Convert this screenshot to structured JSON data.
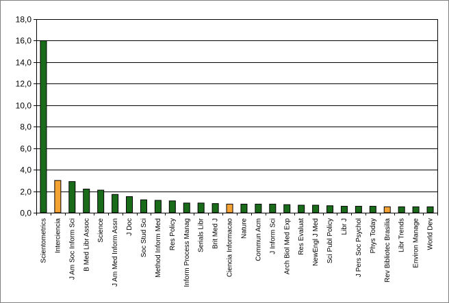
{
  "chart_data": {
    "type": "bar",
    "title": "",
    "xlabel": "",
    "ylabel": "",
    "ylim": [
      0,
      18
    ],
    "ytick_step": 2,
    "y_ticks": [
      "0,0",
      "2,0",
      "4,0",
      "6,0",
      "8,0",
      "10,0",
      "12,0",
      "14,0",
      "16,0",
      "18,0"
    ],
    "grid": "horizontal",
    "legend": "none",
    "colors": {
      "default": "#1a6b1a",
      "highlight": "#f4a233",
      "edge": "#000000"
    },
    "categories": [
      "Scientometrics",
      "Interciencia",
      "J Am Soc Inform Sci",
      "B Med Libr Assoc",
      "Science",
      "J Am Med Inform Assn",
      "J Doc",
      "Soc Stud Sci",
      "Method Inform Med",
      "Res Policy",
      "Inform Process Manag",
      "Serials Libr",
      "Brit Med J",
      "Ciencia Informacao",
      "Nature",
      "Commun Acm",
      "J Inform Sci",
      "Arch Biol Med Exp",
      "Res Evaluat",
      "NewEngl J Med",
      "Sci Publ Policy",
      "Libr J",
      "J Pers Soc Psychol",
      "Phys Today",
      "Rev Bibliotec Brasilia",
      "Libr Trends",
      "Environ Manage",
      "World Dev"
    ],
    "values": [
      16.0,
      3.0,
      2.9,
      2.2,
      2.1,
      1.7,
      1.5,
      1.2,
      1.15,
      1.1,
      0.9,
      0.9,
      0.85,
      0.8,
      0.8,
      0.8,
      0.8,
      0.75,
      0.7,
      0.7,
      0.65,
      0.6,
      0.6,
      0.6,
      0.55,
      0.55,
      0.55,
      0.55
    ],
    "highlighted": [
      "Interciencia",
      "Ciencia Informacao",
      "Rev Bibliotec Brasilia"
    ]
  }
}
